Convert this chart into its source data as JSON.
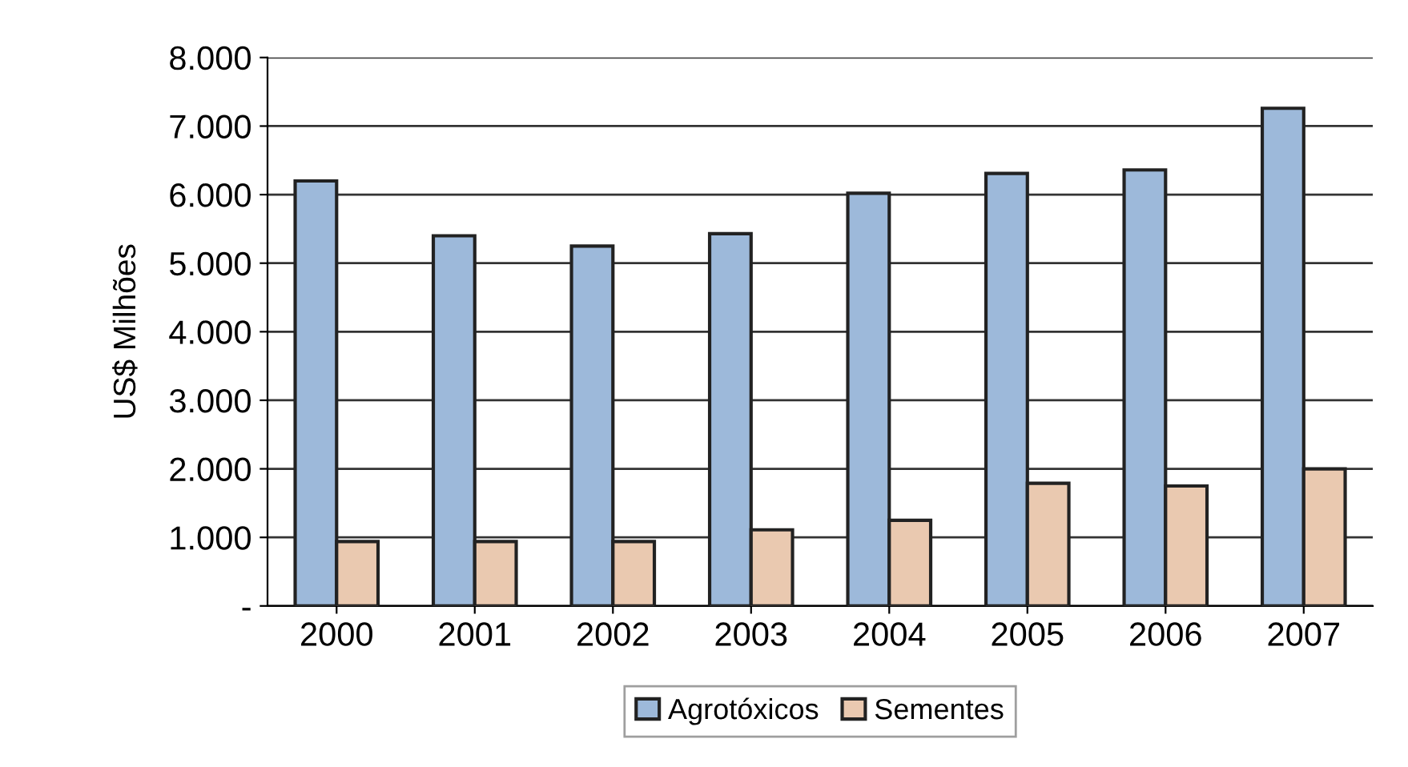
{
  "chart_data": {
    "type": "bar",
    "ylabel": "US$ Milhões",
    "categories": [
      "2000",
      "2001",
      "2002",
      "2003",
      "2004",
      "2005",
      "2006",
      "2007"
    ],
    "series": [
      {
        "name": "Agrotóxicos",
        "color": "#9db9da",
        "values": [
          6200,
          5400,
          5250,
          5430,
          6020,
          6310,
          6360,
          7260
        ]
      },
      {
        "name": "Sementes",
        "color": "#eac9b0",
        "values": [
          940,
          940,
          940,
          1110,
          1250,
          1790,
          1750,
          2000
        ]
      }
    ],
    "ylim": [
      0,
      8000
    ],
    "yticks": [
      {
        "value": 0,
        "label": "-"
      },
      {
        "value": 1000,
        "label": "1.000"
      },
      {
        "value": 2000,
        "label": "2.000"
      },
      {
        "value": 3000,
        "label": "3.000"
      },
      {
        "value": 4000,
        "label": "4.000"
      },
      {
        "value": 5000,
        "label": "5.000"
      },
      {
        "value": 6000,
        "label": "6.000"
      },
      {
        "value": 7000,
        "label": "7.000"
      },
      {
        "value": 8000,
        "label": "8.000"
      }
    ],
    "grid": "y",
    "legend": "bottom"
  }
}
